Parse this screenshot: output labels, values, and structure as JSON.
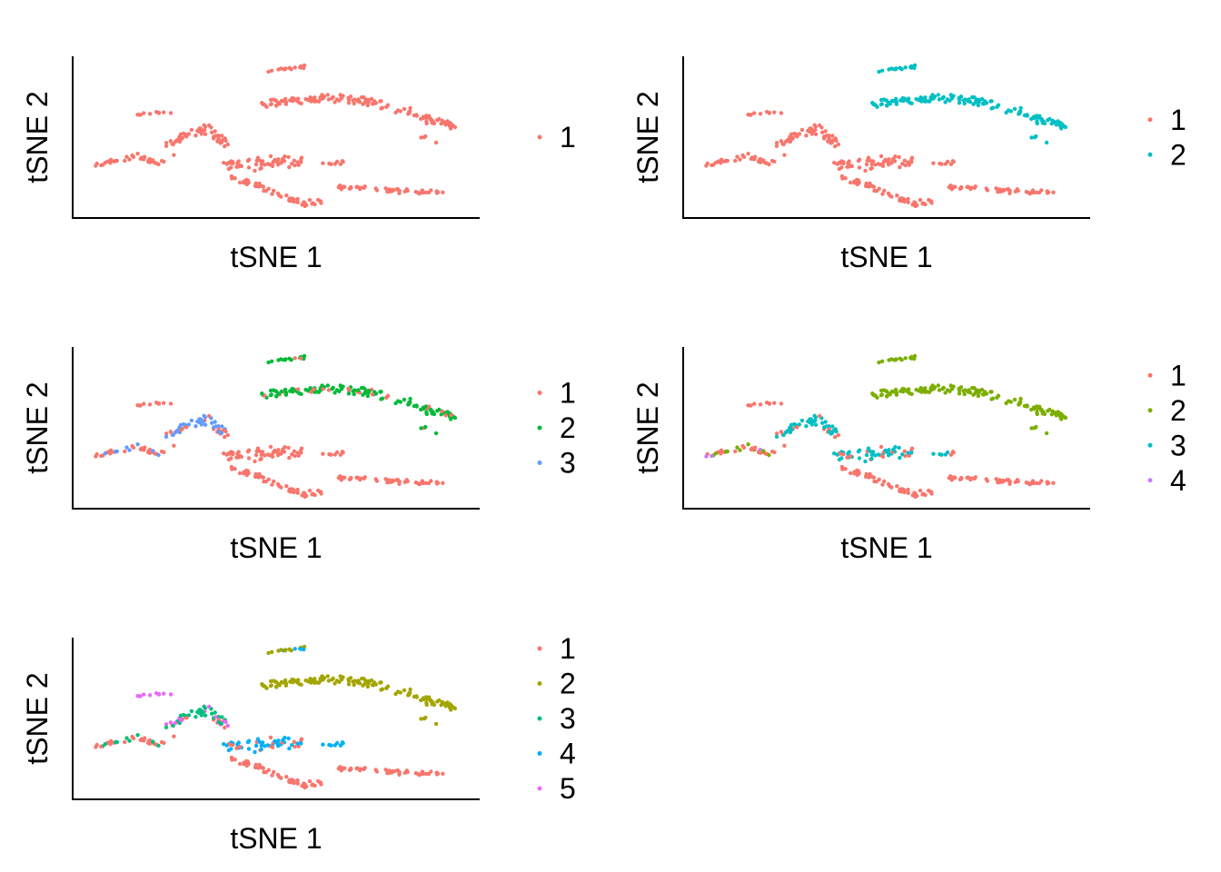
{
  "chart_data": [
    {
      "type": "scatter",
      "title": "",
      "xlabel": "tSNE 1",
      "ylabel": "tSNE 2",
      "legend_position": "right",
      "legend": [
        {
          "label": "1",
          "color": "#F8766D"
        }
      ]
    },
    {
      "type": "scatter",
      "title": "",
      "xlabel": "tSNE 1",
      "ylabel": "tSNE 2",
      "legend_position": "right",
      "legend": [
        {
          "label": "1",
          "color": "#F8766D"
        },
        {
          "label": "2",
          "color": "#00BFC4"
        }
      ]
    },
    {
      "type": "scatter",
      "title": "",
      "xlabel": "tSNE 1",
      "ylabel": "tSNE 2",
      "legend_position": "right",
      "legend": [
        {
          "label": "1",
          "color": "#F8766D"
        },
        {
          "label": "2",
          "color": "#00BA38"
        },
        {
          "label": "3",
          "color": "#619CFF"
        }
      ]
    },
    {
      "type": "scatter",
      "title": "",
      "xlabel": "tSNE 1",
      "ylabel": "tSNE 2",
      "legend_position": "right",
      "legend": [
        {
          "label": "1",
          "color": "#F8766D"
        },
        {
          "label": "2",
          "color": "#7CAE00"
        },
        {
          "label": "3",
          "color": "#00BFC4"
        },
        {
          "label": "4",
          "color": "#C77CFF"
        }
      ]
    },
    {
      "type": "scatter",
      "title": "",
      "xlabel": "tSNE 1",
      "ylabel": "tSNE 2",
      "legend_position": "right",
      "legend": [
        {
          "label": "1",
          "color": "#F8766D"
        },
        {
          "label": "2",
          "color": "#A3A500"
        },
        {
          "label": "3",
          "color": "#00BF7D"
        },
        {
          "label": "4",
          "color": "#00B0F6"
        },
        {
          "label": "5",
          "color": "#E76BF3"
        }
      ]
    }
  ]
}
